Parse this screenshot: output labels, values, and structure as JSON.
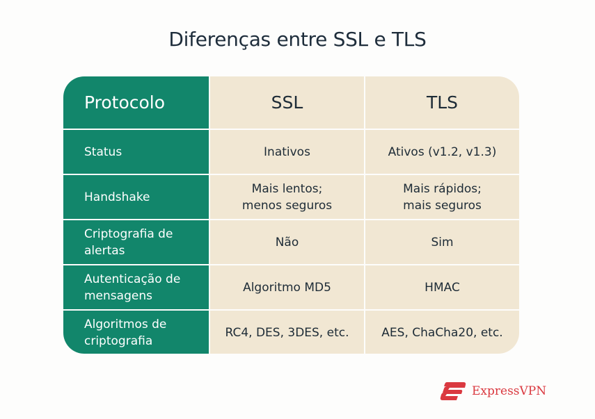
{
  "title": "Diferenças entre SSL e TLS",
  "table": {
    "headers": [
      "Protocolo",
      "SSL",
      "TLS"
    ],
    "rows": [
      {
        "label": "Status",
        "ssl": "Inativos",
        "tls": "Ativos (v1.2, v1.3)"
      },
      {
        "label": "Handshake",
        "ssl": "Mais lentos;\nmenos seguros",
        "tls": "Mais rápidos;\nmais seguros"
      },
      {
        "label": "Criptografia de\nalertas",
        "ssl": "Não",
        "tls": "Sim"
      },
      {
        "label": "Autenticação de\nmensagens",
        "ssl": "Algoritmo MD5",
        "tls": "HMAC"
      },
      {
        "label": "Algoritmos de\ncriptografia",
        "ssl": "RC4, DES, 3DES, etc.",
        "tls": "AES, ChaCha20, etc."
      }
    ]
  },
  "brand": {
    "name": "ExpressVPN",
    "color": "#da3940"
  },
  "colors": {
    "header_green": "#12866b",
    "cell_beige": "#f1e7d3"
  }
}
